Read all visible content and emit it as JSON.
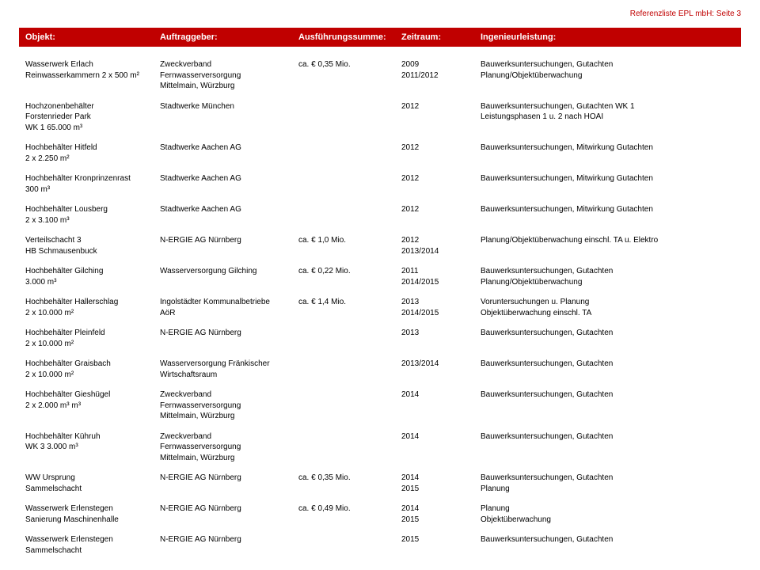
{
  "page_header": "Referenzliste EPL mbH: Seite 3",
  "columns": {
    "c1": "Objekt:",
    "c2": "Auftraggeber:",
    "c3": "Ausführungssumme:",
    "c4": "Zeitraum:",
    "c5": "Ingenieurleistung:"
  },
  "rows": [
    {
      "objekt": "Wasserwerk Erlach\nReinwasserkammern 2 x 500 m²",
      "auftraggeber": "Zweckverband\nFernwasserversorgung\nMittelmain, Würzburg",
      "summe": "ca. € 0,35 Mio.",
      "zeitraum": "2009\n2011/2012",
      "leistung": "Bauwerksuntersuchungen, Gutachten\nPlanung/Objektüberwachung"
    },
    {
      "objekt": "Hochzonenbehälter\nForstenrieder Park\nWK 1 65.000 m³",
      "auftraggeber": "Stadtwerke München",
      "summe": "",
      "zeitraum": "2012",
      "leistung": "Bauwerksuntersuchungen, Gutachten WK 1\nLeistungsphasen 1 u. 2 nach HOAI"
    },
    {
      "objekt": "Hochbehälter Hitfeld\n2 x 2.250 m²",
      "auftraggeber": "Stadtwerke Aachen AG",
      "summe": "",
      "zeitraum": "2012",
      "leistung": "Bauwerksuntersuchungen, Mitwirkung Gutachten"
    },
    {
      "objekt": "Hochbehälter Kronprinzenrast\n300 m³",
      "auftraggeber": "Stadtwerke Aachen AG",
      "summe": "",
      "zeitraum": "2012",
      "leistung": "Bauwerksuntersuchungen, Mitwirkung Gutachten"
    },
    {
      "objekt": "Hochbehälter Lousberg\n2 x 3.100 m³",
      "auftraggeber": "Stadtwerke Aachen AG",
      "summe": "",
      "zeitraum": "2012",
      "leistung": "Bauwerksuntersuchungen, Mitwirkung Gutachten"
    },
    {
      "objekt": "Verteilschacht 3\nHB Schmausenbuck",
      "auftraggeber": "N-ERGIE AG Nürnberg",
      "summe": "ca. € 1,0 Mio.",
      "zeitraum": "2012\n2013/2014",
      "leistung": "Planung/Objektüberwachung einschl. TA u. Elektro"
    },
    {
      "objekt": "Hochbehälter Gilching\n3.000 m³",
      "auftraggeber": "Wasserversorgung Gilching",
      "summe": "ca. € 0,22 Mio.",
      "zeitraum": "2011\n2014/2015",
      "leistung": "Bauwerksuntersuchungen, Gutachten\nPlanung/Objektüberwachung"
    },
    {
      "objekt": "Hochbehälter Hallerschlag\n2 x 10.000 m²",
      "auftraggeber": "Ingolstädter Kommunalbetriebe\nAöR",
      "summe": "ca. € 1,4 Mio.",
      "zeitraum": "2013\n2014/2015",
      "leistung": "Voruntersuchungen u. Planung\nObjektüberwachung einschl. TA"
    },
    {
      "objekt": "Hochbehälter Pleinfeld\n2 x 10.000 m²",
      "auftraggeber": "N-ERGIE AG Nürnberg",
      "summe": "",
      "zeitraum": "2013",
      "leistung": "Bauwerksuntersuchungen, Gutachten"
    },
    {
      "objekt": "Hochbehälter Graisbach\n2 x 10.000 m²",
      "auftraggeber": "Wasserversorgung Fränkischer\nWirtschaftsraum",
      "summe": "",
      "zeitraum": "2013/2014",
      "leistung": "Bauwerksuntersuchungen, Gutachten"
    },
    {
      "objekt": "Hochbehälter Gieshügel\n2 x 2.000 m³ m³",
      "auftraggeber": "Zweckverband\nFernwasserversorgung\nMittelmain, Würzburg",
      "summe": "",
      "zeitraum": "2014",
      "leistung": "Bauwerksuntersuchungen, Gutachten"
    },
    {
      "objekt": "Hochbehälter Kühruh\nWK 3 3.000 m³",
      "auftraggeber": "Zweckverband\nFernwasserversorgung\nMittelmain, Würzburg",
      "summe": "",
      "zeitraum": "2014",
      "leistung": "Bauwerksuntersuchungen, Gutachten"
    },
    {
      "objekt": "WW Ursprung\nSammelschacht",
      "auftraggeber": "N-ERGIE AG Nürnberg",
      "summe": "ca. € 0,35 Mio.",
      "zeitraum": "2014\n2015",
      "leistung": "Bauwerksuntersuchungen, Gutachten\nPlanung"
    },
    {
      "objekt": "Wasserwerk Erlenstegen\nSanierung Maschinenhalle",
      "auftraggeber": "N-ERGIE AG Nürnberg",
      "summe": "ca. € 0,49 Mio.",
      "zeitraum": "2014\n2015",
      "leistung": "Planung\nObjektüberwachung"
    },
    {
      "objekt": "Wasserwerk Erlenstegen\nSammelschacht",
      "auftraggeber": "N-ERGIE AG Nürnberg",
      "summe": "",
      "zeitraum": "2015",
      "leistung": "Bauwerksuntersuchungen, Gutachten"
    }
  ]
}
